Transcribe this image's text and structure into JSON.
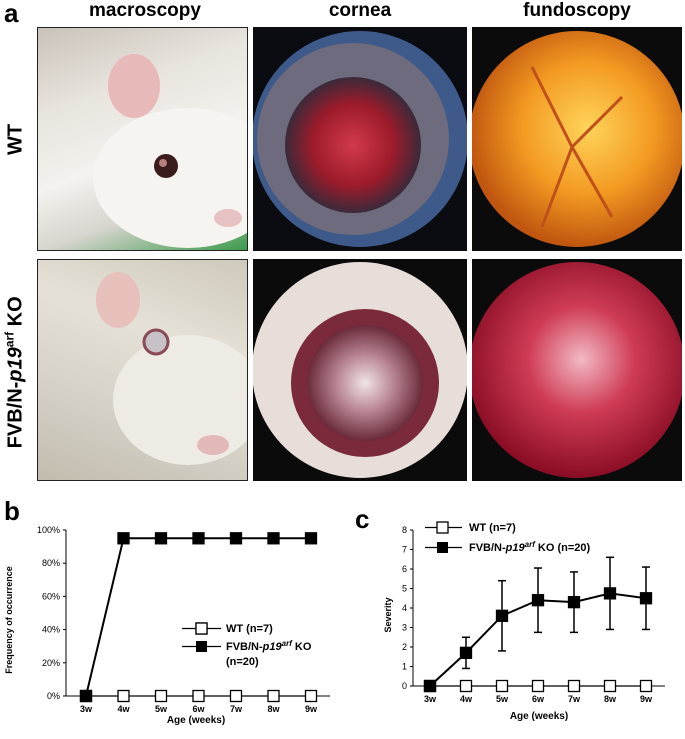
{
  "figure": {
    "panel_a_label": "a",
    "panel_b_label": "b",
    "panel_c_label": "c",
    "columns": [
      "macroscopy",
      "cornea",
      "fundoscopy"
    ],
    "rows": {
      "wt": "WT",
      "ko_prefix": "FVB/N-",
      "ko_gene": "p19",
      "ko_sup": "arf",
      "ko_suffix": " KO"
    }
  },
  "chart_data": [
    {
      "type": "line",
      "panel": "b",
      "title": "",
      "xlabel": "Age (weeks)",
      "ylabel": "Frequency of occurrence",
      "categories": [
        "3w",
        "4w",
        "5w",
        "6w",
        "7w",
        "8w",
        "9w"
      ],
      "y_ticks": [
        "0%",
        "20%",
        "40%",
        "60%",
        "80%",
        "100%"
      ],
      "ylim": [
        0,
        100
      ],
      "grid": false,
      "legend_placement": "center-right",
      "series": [
        {
          "name": "WT (n=7)",
          "marker": "open-square",
          "values": [
            0,
            0,
            0,
            0,
            0,
            0,
            0
          ]
        },
        {
          "name_prefix": "FVB/N-",
          "name_gene": "p19",
          "name_sup": "arf",
          "name_suffix": " KO",
          "name_line2": "(n=20)",
          "marker": "filled-square",
          "values": [
            0,
            95,
            95,
            95,
            95,
            95,
            95
          ]
        }
      ]
    },
    {
      "type": "line",
      "panel": "c",
      "title": "",
      "xlabel": "Age (weeks)",
      "ylabel": "Severity",
      "categories": [
        "3w",
        "4w",
        "5w",
        "6w",
        "7w",
        "8w",
        "9w"
      ],
      "y_ticks": [
        "0",
        "1",
        "2",
        "3",
        "4",
        "5",
        "6",
        "7",
        "8"
      ],
      "ylim": [
        0,
        8
      ],
      "grid": false,
      "legend_placement": "top-left",
      "series": [
        {
          "name": "WT (n=7)",
          "marker": "open-square",
          "values": [
            0,
            0,
            0,
            0,
            0,
            0,
            0
          ]
        },
        {
          "name_prefix": "FVB/N-",
          "name_gene": "p19",
          "name_sup": "arf",
          "name_suffix": " KO (n=20)",
          "marker": "filled-square",
          "values": [
            0,
            1.7,
            3.6,
            4.4,
            4.3,
            4.75,
            4.5
          ],
          "error": [
            0,
            0.8,
            1.8,
            1.65,
            1.55,
            1.85,
            1.6
          ]
        }
      ]
    }
  ]
}
